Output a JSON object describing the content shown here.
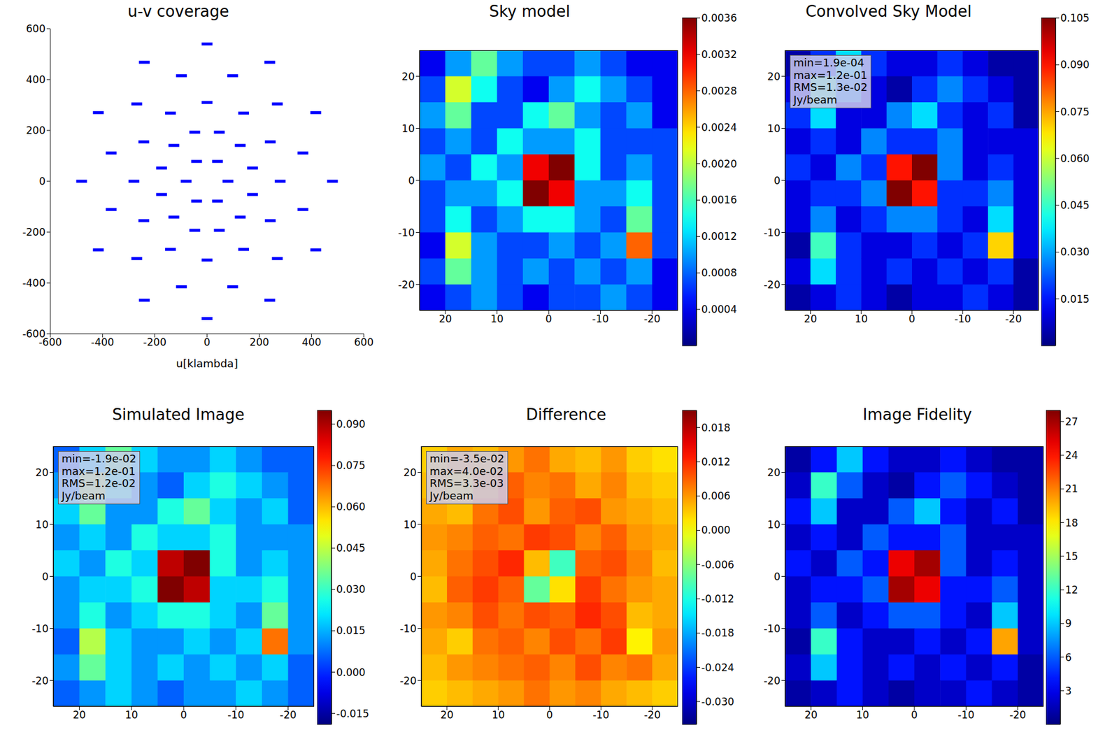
{
  "chart_data": [
    {
      "type": "scatter",
      "title": "u-v coverage",
      "x_label": "u[klambda]",
      "color": "#0000ff",
      "marker": "dash",
      "x": [
        480,
        416,
        240,
        0,
        -240,
        -416,
        -480,
        -416,
        -240,
        0,
        240,
        416,
        367,
        269,
        98,
        -98,
        -269,
        -367,
        -367,
        -269,
        -98,
        98,
        269,
        367,
        280,
        242,
        140,
        0,
        -140,
        -242,
        -280,
        -242,
        -140,
        0,
        140,
        242,
        174,
        127,
        47,
        -47,
        -127,
        -174,
        -174,
        -127,
        -47,
        47,
        127,
        174,
        80,
        40,
        -40,
        -80,
        -40,
        40
      ],
      "y": [
        0,
        270,
        468,
        540,
        468,
        270,
        0,
        -270,
        -468,
        -540,
        -468,
        -270,
        111,
        304,
        415,
        415,
        304,
        111,
        -111,
        -304,
        -415,
        -415,
        -304,
        -111,
        0,
        155,
        268,
        310,
        268,
        155,
        0,
        -155,
        -268,
        -310,
        -268,
        -155,
        52,
        141,
        193,
        193,
        141,
        52,
        -52,
        -141,
        -193,
        -193,
        -141,
        -52,
        0,
        78,
        78,
        0,
        -78,
        -78
      ],
      "xlim": [
        -600,
        600
      ],
      "ylim": [
        -600,
        600
      ],
      "xticks": [
        -600,
        -400,
        -200,
        0,
        200,
        400,
        600
      ],
      "yticks": [
        -600,
        -400,
        -200,
        0,
        200,
        400,
        600
      ]
    },
    {
      "type": "heatmap",
      "title": "Sky model",
      "x": [
        22.5,
        17.5,
        12.5,
        7.5,
        2.5,
        -2.5,
        -7.5,
        -12.5,
        -17.5,
        -22.5
      ],
      "y": [
        22.5,
        17.5,
        12.5,
        7.5,
        2.5,
        -2.5,
        -7.5,
        -12.5,
        -17.5,
        -22.5
      ],
      "cells": [
        [
          0.0004,
          0.001,
          0.0017,
          0.001,
          0.0007,
          0.0007,
          0.001,
          0.0007,
          0.0004,
          0.0004
        ],
        [
          0.0007,
          0.0021,
          0.0014,
          0.0007,
          0.0004,
          0.001,
          0.0014,
          0.001,
          0.0007,
          0.0004
        ],
        [
          0.001,
          0.0017,
          0.0007,
          0.0007,
          0.0014,
          0.0017,
          0.001,
          0.0007,
          0.001,
          0.0004
        ],
        [
          0.0007,
          0.001,
          0.0007,
          0.0014,
          0.001,
          0.001,
          0.0014,
          0.0007,
          0.0007,
          0.0007
        ],
        [
          0.001,
          0.0007,
          0.0014,
          0.001,
          0.0032,
          0.0036,
          0.0014,
          0.0007,
          0.001,
          0.0007
        ],
        [
          0.0007,
          0.001,
          0.001,
          0.0014,
          0.0036,
          0.0032,
          0.001,
          0.001,
          0.0014,
          0.0007
        ],
        [
          0.0007,
          0.0014,
          0.0007,
          0.001,
          0.0014,
          0.0014,
          0.001,
          0.0007,
          0.0017,
          0.0007
        ],
        [
          0.0004,
          0.0021,
          0.001,
          0.0007,
          0.0007,
          0.001,
          0.0007,
          0.001,
          0.0028,
          0.0007
        ],
        [
          0.0007,
          0.0017,
          0.001,
          0.0007,
          0.001,
          0.0007,
          0.001,
          0.0007,
          0.001,
          0.0004
        ],
        [
          0.0004,
          0.0007,
          0.001,
          0.0007,
          0.0004,
          0.0007,
          0.0007,
          0.001,
          0.0007,
          0.0004
        ]
      ],
      "xlim": [
        25,
        -25
      ],
      "ylim": [
        -25,
        25
      ],
      "xticks": [
        20,
        10,
        0,
        -10,
        -20
      ],
      "yticks": [
        -20,
        -10,
        0,
        10,
        20
      ],
      "colorbar_range": [
        0,
        0.0036
      ],
      "colorbar_ticks": [
        0.0004,
        0.0008,
        0.0012,
        0.0016,
        {
          "value": 0.002,
          "label": "0.0020"
        },
        0.0024,
        0.0028,
        0.0032,
        0.0036
      ]
    },
    {
      "type": "heatmap",
      "title": "Convolved Sky Model",
      "x": [
        22.5,
        17.5,
        12.5,
        7.5,
        2.5,
        -2.5,
        -7.5,
        -12.5,
        -17.5,
        -22.5
      ],
      "y": [
        22.5,
        17.5,
        12.5,
        7.5,
        2.5,
        -2.5,
        -7.5,
        -12.5,
        -17.5,
        -22.5
      ],
      "cells": [
        [
          0.004,
          0.018,
          0.036,
          0.018,
          0.01,
          0.01,
          0.018,
          0.01,
          0.004,
          0.004
        ],
        [
          0.01,
          0.046,
          0.027,
          0.01,
          0.004,
          0.018,
          0.027,
          0.018,
          0.01,
          0.004
        ],
        [
          0.018,
          0.036,
          0.01,
          0.01,
          0.027,
          0.036,
          0.018,
          0.01,
          0.018,
          0.004
        ],
        [
          0.01,
          0.018,
          0.01,
          0.027,
          0.018,
          0.018,
          0.027,
          0.01,
          0.01,
          0.01
        ],
        [
          0.018,
          0.01,
          0.027,
          0.018,
          0.09,
          0.105,
          0.027,
          0.01,
          0.018,
          0.01
        ],
        [
          0.01,
          0.018,
          0.018,
          0.027,
          0.105,
          0.09,
          0.018,
          0.018,
          0.027,
          0.01
        ],
        [
          0.01,
          0.027,
          0.01,
          0.018,
          0.027,
          0.027,
          0.018,
          0.01,
          0.036,
          0.01
        ],
        [
          0.004,
          0.046,
          0.018,
          0.01,
          0.01,
          0.018,
          0.01,
          0.018,
          0.07,
          0.01
        ],
        [
          0.01,
          0.036,
          0.018,
          0.01,
          0.018,
          0.01,
          0.018,
          0.01,
          0.018,
          0.004
        ],
        [
          0.004,
          0.01,
          0.018,
          0.01,
          0.004,
          0.01,
          0.01,
          0.018,
          0.01,
          0.004
        ]
      ],
      "xlim": [
        25,
        -25
      ],
      "ylim": [
        -25,
        25
      ],
      "xticks": [
        20,
        10,
        0,
        -10,
        -20
      ],
      "yticks": [
        -20,
        -10,
        0,
        10,
        20
      ],
      "colorbar_range": [
        0,
        0.105
      ],
      "colorbar_ticks": [
        0.015,
        {
          "value": 0.03,
          "label": "0.030"
        },
        0.045,
        {
          "value": 0.06,
          "label": "0.060"
        },
        0.075,
        {
          "value": 0.09,
          "label": "0.090"
        },
        0.105
      ],
      "annotation": [
        "min=1.9e-04",
        "max=1.2e-01",
        "RMS=1.3e-02",
        "Jy/beam"
      ]
    },
    {
      "type": "heatmap",
      "title": "Simulated Image",
      "x": [
        22.5,
        17.5,
        12.5,
        7.5,
        2.5,
        -2.5,
        -7.5,
        -12.5,
        -17.5,
        -22.5
      ],
      "y": [
        22.5,
        17.5,
        12.5,
        7.5,
        2.5,
        -2.5,
        -7.5,
        -12.5,
        -17.5,
        -22.5
      ],
      "cells": [
        [
          0.006,
          0.019,
          0.035,
          0.019,
          0.012,
          0.012,
          0.019,
          0.012,
          0.006,
          0.006
        ],
        [
          0.012,
          0.044,
          0.027,
          0.012,
          0.006,
          0.019,
          0.027,
          0.019,
          0.012,
          0.006
        ],
        [
          0.019,
          0.035,
          0.012,
          0.012,
          0.027,
          0.035,
          0.019,
          0.012,
          0.019,
          0.006
        ],
        [
          0.012,
          0.019,
          0.012,
          0.027,
          0.019,
          0.019,
          0.027,
          0.012,
          0.012,
          0.012
        ],
        [
          0.019,
          0.012,
          0.027,
          0.019,
          0.088,
          0.095,
          0.027,
          0.012,
          0.019,
          0.012
        ],
        [
          0.012,
          0.019,
          0.019,
          0.027,
          0.095,
          0.088,
          0.019,
          0.019,
          0.027,
          0.012
        ],
        [
          0.012,
          0.027,
          0.012,
          0.019,
          0.027,
          0.027,
          0.019,
          0.012,
          0.035,
          0.012
        ],
        [
          0.006,
          0.044,
          0.019,
          0.012,
          0.012,
          0.019,
          0.012,
          0.019,
          0.068,
          0.012
        ],
        [
          0.012,
          0.035,
          0.019,
          0.012,
          0.019,
          0.012,
          0.019,
          0.012,
          0.019,
          0.006
        ],
        [
          0.006,
          0.012,
          0.019,
          0.012,
          0.006,
          0.012,
          0.012,
          0.019,
          0.012,
          0.006
        ]
      ],
      "xlim": [
        25,
        -25
      ],
      "ylim": [
        -25,
        25
      ],
      "xticks": [
        20,
        10,
        0,
        -10,
        -20
      ],
      "yticks": [
        -20,
        -10,
        0,
        10,
        20
      ],
      "colorbar_range": [
        -0.019,
        0.095
      ],
      "colorbar_ticks": [
        -0.015,
        {
          "value": 0,
          "label": "0.000"
        },
        0.015,
        {
          "value": 0.03,
          "label": "0.030"
        },
        0.045,
        {
          "value": 0.06,
          "label": "0.060"
        },
        0.075,
        {
          "value": 0.09,
          "label": "0.090"
        }
      ],
      "annotation": [
        "min=-1.9e-02",
        "max=1.2e-01",
        "RMS=1.2e-02",
        "Jy/beam"
      ]
    },
    {
      "type": "heatmap",
      "title": "Difference",
      "x": [
        22.5,
        17.5,
        12.5,
        7.5,
        2.5,
        -2.5,
        -7.5,
        -12.5,
        -17.5,
        -22.5
      ],
      "y": [
        22.5,
        17.5,
        12.5,
        7.5,
        2.5,
        -2.5,
        -7.5,
        -12.5,
        -17.5,
        -22.5
      ],
      "cells": [
        [
          0.003,
          0.005,
          0.004,
          0.006,
          0.008,
          0.005,
          0.004,
          0.006,
          0.003,
          0.002
        ],
        [
          0.004,
          0.002,
          0.006,
          0.009,
          0.007,
          0.008,
          0.005,
          0.007,
          0.004,
          0.003
        ],
        [
          0.005,
          0.004,
          0.008,
          0.01,
          0.006,
          0.009,
          0.01,
          0.006,
          0.005,
          0.004
        ],
        [
          0.006,
          0.007,
          0.009,
          0.008,
          0.011,
          0.01,
          0.007,
          0.009,
          0.006,
          0.005
        ],
        [
          0.005,
          0.008,
          0.01,
          0.012,
          0.004,
          -0.01,
          0.009,
          0.01,
          0.007,
          0.004
        ],
        [
          0.004,
          0.009,
          0.011,
          0.009,
          -0.008,
          0.002,
          0.011,
          0.008,
          0.006,
          0.005
        ],
        [
          0.006,
          0.007,
          0.01,
          0.008,
          0.01,
          0.009,
          0.012,
          0.01,
          0.004,
          0.005
        ],
        [
          0.005,
          0.003,
          0.008,
          0.009,
          0.007,
          0.01,
          0.008,
          0.011,
          0.001,
          0.006
        ],
        [
          0.004,
          0.006,
          0.007,
          0.008,
          0.009,
          0.007,
          0.01,
          0.007,
          0.008,
          0.005
        ],
        [
          0.003,
          0.004,
          0.005,
          0.006,
          0.008,
          0.006,
          0.007,
          0.005,
          0.004,
          0.003
        ]
      ],
      "xlim": [
        25,
        -25
      ],
      "ylim": [
        -25,
        25
      ],
      "xticks": [
        20,
        10,
        0,
        -10,
        -20
      ],
      "yticks": [
        -20,
        -10,
        0,
        10,
        20
      ],
      "colorbar_range": [
        -0.034,
        0.021
      ],
      "colorbar_ticks": [
        {
          "value": -0.03,
          "label": "-0.030"
        },
        -0.024,
        -0.018,
        -0.012,
        -0.006,
        {
          "value": 0,
          "label": "0.000"
        },
        0.006,
        0.012,
        0.018
      ],
      "annotation": [
        "min=-3.5e-02",
        "max=4.0e-02",
        "RMS=3.3e-03",
        "Jy/beam"
      ]
    },
    {
      "type": "heatmap",
      "title": "Image Fidelity",
      "x": [
        22.5,
        17.5,
        12.5,
        7.5,
        2.5,
        -2.5,
        -7.5,
        -12.5,
        -17.5,
        -22.5
      ],
      "y": [
        22.5,
        17.5,
        12.5,
        7.5,
        2.5,
        -2.5,
        -7.5,
        -12.5,
        -17.5,
        -22.5
      ],
      "cells": [
        [
          1,
          4,
          9,
          4,
          2,
          2,
          4,
          2,
          1,
          1
        ],
        [
          2,
          12,
          6,
          2,
          1,
          4,
          6,
          4,
          2,
          1
        ],
        [
          4,
          9,
          2,
          2,
          6,
          9,
          4,
          2,
          4,
          1
        ],
        [
          2,
          4,
          2,
          6,
          4,
          4,
          6,
          2,
          2,
          2
        ],
        [
          4,
          2,
          6,
          4,
          25,
          27,
          6,
          2,
          4,
          2
        ],
        [
          2,
          4,
          4,
          6,
          27,
          25,
          4,
          4,
          6,
          2
        ],
        [
          2,
          6,
          2,
          4,
          6,
          6,
          4,
          2,
          9,
          2
        ],
        [
          1,
          12,
          4,
          2,
          2,
          4,
          2,
          4,
          20,
          2
        ],
        [
          2,
          9,
          4,
          2,
          4,
          2,
          4,
          2,
          4,
          1
        ],
        [
          1,
          2,
          4,
          2,
          1,
          2,
          2,
          4,
          2,
          1
        ]
      ],
      "xlim": [
        25,
        -25
      ],
      "ylim": [
        -25,
        25
      ],
      "xticks": [
        20,
        10,
        0,
        -10,
        -20
      ],
      "yticks": [
        -20,
        -10,
        0,
        10,
        20
      ],
      "colorbar_range": [
        0,
        28
      ],
      "colorbar_ticks": [
        3,
        6,
        9,
        12,
        15,
        18,
        21,
        24,
        27
      ]
    }
  ]
}
